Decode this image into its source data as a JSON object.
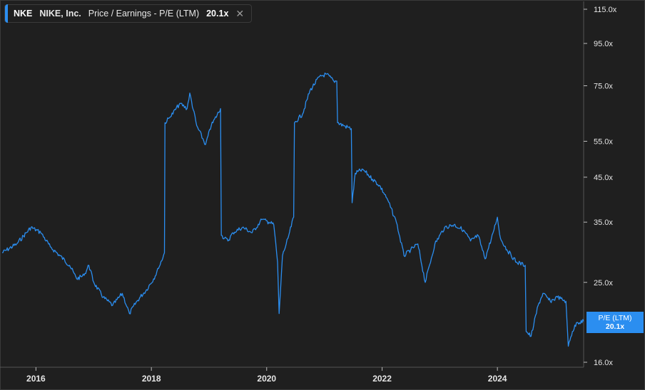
{
  "legend": {
    "ticker": "NKE",
    "company": "NIKE, Inc.",
    "metric": "Price / Earnings - P/E (LTM)",
    "value": "20.1x",
    "close_icon": "close-icon"
  },
  "price_tag": {
    "label": "P/E (LTM)",
    "value": "20.1x"
  },
  "colors": {
    "series": "#2b8ef0",
    "background": "#1f1f1f",
    "grid": "#3a3a3a"
  },
  "chart_data": {
    "type": "line",
    "title": "",
    "xlabel": "",
    "ylabel": "",
    "y_scale": "log",
    "ylim": [
      16.0,
      115.0
    ],
    "xlim": [
      "2015-06-01",
      "2025-06-30"
    ],
    "y_ticks": [
      16.0,
      25.0,
      35.0,
      45.0,
      55.0,
      75.0,
      95.0,
      115.0
    ],
    "y_tick_labels": [
      "16.0x",
      "25.0x",
      "35.0x",
      "45.0x",
      "55.0x",
      "75.0x",
      "95.0x",
      "115.0x"
    ],
    "x_ticks": [
      "2016-01-01",
      "2018-01-01",
      "2020-01-01",
      "2022-01-01",
      "2024-01-01"
    ],
    "x_tick_labels": [
      "2016",
      "2018",
      "2020",
      "2022",
      "2024"
    ],
    "grid": false,
    "series": [
      {
        "color": "#2b8ef0",
        "points": [
          [
            "2015-06-01",
            29.5
          ],
          [
            "2015-09-01",
            31.0
          ],
          [
            "2015-12-01",
            34.0
          ],
          [
            "2016-02-01",
            33.0
          ],
          [
            "2016-04-01",
            30.5
          ],
          [
            "2016-06-01",
            29.0
          ],
          [
            "2016-08-01",
            27.5
          ],
          [
            "2016-09-15",
            25.5
          ],
          [
            "2016-11-01",
            26.0
          ],
          [
            "2016-12-01",
            27.5
          ],
          [
            "2017-01-01",
            25.0
          ],
          [
            "2017-03-01",
            23.0
          ],
          [
            "2017-05-01",
            22.0
          ],
          [
            "2017-07-01",
            23.5
          ],
          [
            "2017-08-15",
            21.0
          ],
          [
            "2017-10-01",
            22.5
          ],
          [
            "2017-12-01",
            24.0
          ],
          [
            "2018-01-15",
            25.5
          ],
          [
            "2018-02-15",
            27.0
          ],
          [
            "2018-03-25",
            29.5
          ],
          [
            "2018-03-28",
            61.0
          ],
          [
            "2018-05-01",
            63.0
          ],
          [
            "2018-07-01",
            68.0
          ],
          [
            "2018-08-15",
            66.0
          ],
          [
            "2018-09-01",
            72.0
          ],
          [
            "2018-10-15",
            60.0
          ],
          [
            "2018-12-10",
            54.0
          ],
          [
            "2019-01-15",
            60.0
          ],
          [
            "2019-03-15",
            66.0
          ],
          [
            "2019-03-20",
            32.5
          ],
          [
            "2019-05-01",
            31.5
          ],
          [
            "2019-06-01",
            33.0
          ],
          [
            "2019-08-01",
            34.0
          ],
          [
            "2019-10-01",
            33.0
          ],
          [
            "2019-12-01",
            35.5
          ],
          [
            "2020-01-15",
            35.0
          ],
          [
            "2020-02-15",
            34.5
          ],
          [
            "2020-03-10",
            28.0
          ],
          [
            "2020-03-20",
            21.0
          ],
          [
            "2020-04-10",
            29.0
          ],
          [
            "2020-05-15",
            32.0
          ],
          [
            "2020-06-20",
            36.0
          ],
          [
            "2020-06-25",
            61.0
          ],
          [
            "2020-08-15",
            64.0
          ],
          [
            "2020-10-01",
            73.0
          ],
          [
            "2020-12-01",
            79.0
          ],
          [
            "2021-01-15",
            80.0
          ],
          [
            "2021-03-01",
            77.0
          ],
          [
            "2021-03-20",
            77.0
          ],
          [
            "2021-03-25",
            61.0
          ],
          [
            "2021-05-01",
            60.0
          ],
          [
            "2021-06-20",
            59.0
          ],
          [
            "2021-06-25",
            39.0
          ],
          [
            "2021-07-15",
            46.0
          ],
          [
            "2021-09-01",
            47.0
          ],
          [
            "2021-11-01",
            44.5
          ],
          [
            "2021-12-15",
            43.0
          ],
          [
            "2022-02-01",
            40.0
          ],
          [
            "2022-04-01",
            35.0
          ],
          [
            "2022-05-20",
            29.0
          ],
          [
            "2022-07-01",
            30.0
          ],
          [
            "2022-08-15",
            31.0
          ],
          [
            "2022-10-01",
            25.0
          ],
          [
            "2022-12-01",
            31.0
          ],
          [
            "2023-02-01",
            34.0
          ],
          [
            "2023-04-01",
            34.5
          ],
          [
            "2023-06-01",
            33.5
          ],
          [
            "2023-07-15",
            31.5
          ],
          [
            "2023-09-01",
            32.5
          ],
          [
            "2023-10-15",
            28.5
          ],
          [
            "2023-12-10",
            33.5
          ],
          [
            "2024-01-01",
            36.0
          ],
          [
            "2024-01-20",
            32.0
          ],
          [
            "2024-03-01",
            30.0
          ],
          [
            "2024-05-01",
            28.0
          ],
          [
            "2024-06-25",
            27.5
          ],
          [
            "2024-07-01",
            19.0
          ],
          [
            "2024-08-01",
            18.5
          ],
          [
            "2024-09-15",
            22.0
          ],
          [
            "2024-10-15",
            23.5
          ],
          [
            "2024-12-01",
            22.5
          ],
          [
            "2025-01-15",
            23.0
          ],
          [
            "2025-03-10",
            22.5
          ],
          [
            "2025-03-25",
            17.5
          ],
          [
            "2025-04-20",
            19.0
          ],
          [
            "2025-05-20",
            20.0
          ],
          [
            "2025-06-30",
            20.1
          ]
        ]
      }
    ]
  }
}
